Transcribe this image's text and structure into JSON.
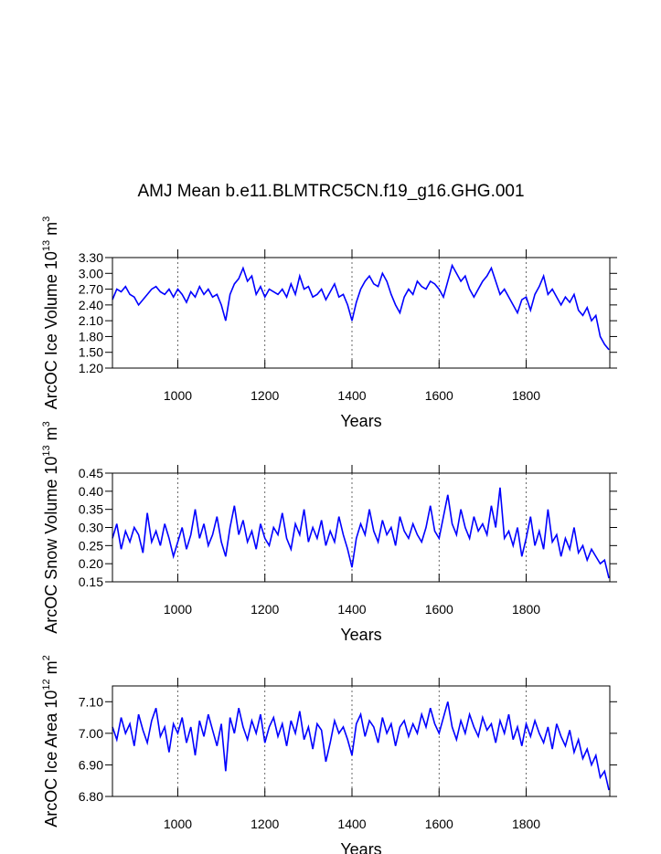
{
  "chart_data": [
    {
      "type": "line",
      "title": "AMJ Mean b.e11.BLMTRC5CN.f19_g16.GHG.001",
      "ylabel": [
        "ArcOC Ice Volume 10",
        "13",
        " m",
        "3"
      ],
      "xlabel": "Years",
      "xlim": [
        850,
        1992
      ],
      "xticks": [
        1000,
        1200,
        1400,
        1600,
        1800
      ],
      "ylim": [
        1.2,
        3.3
      ],
      "yticks": [
        {
          "value": 1.2,
          "label": "1.20"
        },
        {
          "value": 1.5,
          "label": "1.50"
        },
        {
          "value": 1.8,
          "label": "1.80"
        },
        {
          "value": 2.1,
          "label": "2.10"
        },
        {
          "value": 2.4,
          "label": "2.40"
        },
        {
          "value": 2.7,
          "label": "2.70"
        },
        {
          "value": 3.0,
          "label": "3.00"
        },
        {
          "value": 3.3,
          "label": "3.30"
        }
      ],
      "grid": true,
      "x": [
        850,
        860,
        870,
        880,
        890,
        900,
        910,
        920,
        930,
        940,
        950,
        960,
        970,
        980,
        990,
        1000,
        1010,
        1020,
        1030,
        1040,
        1050,
        1060,
        1070,
        1080,
        1090,
        1100,
        1110,
        1120,
        1130,
        1140,
        1150,
        1160,
        1170,
        1180,
        1190,
        1200,
        1210,
        1220,
        1230,
        1240,
        1250,
        1260,
        1270,
        1280,
        1290,
        1300,
        1310,
        1320,
        1330,
        1340,
        1350,
        1360,
        1370,
        1380,
        1390,
        1400,
        1410,
        1420,
        1430,
        1440,
        1450,
        1460,
        1470,
        1480,
        1490,
        1500,
        1510,
        1520,
        1530,
        1540,
        1550,
        1560,
        1570,
        1580,
        1590,
        1600,
        1610,
        1620,
        1630,
        1640,
        1650,
        1660,
        1670,
        1680,
        1690,
        1700,
        1710,
        1720,
        1730,
        1740,
        1750,
        1760,
        1770,
        1780,
        1790,
        1800,
        1810,
        1820,
        1830,
        1840,
        1850,
        1860,
        1870,
        1880,
        1890,
        1900,
        1910,
        1920,
        1930,
        1940,
        1950,
        1960,
        1970,
        1980,
        1990
      ],
      "series": [
        {
          "color": "#0000ff",
          "values": [
            2.5,
            2.7,
            2.65,
            2.75,
            2.6,
            2.55,
            2.4,
            2.5,
            2.6,
            2.7,
            2.75,
            2.65,
            2.6,
            2.7,
            2.55,
            2.7,
            2.6,
            2.45,
            2.65,
            2.55,
            2.75,
            2.6,
            2.7,
            2.55,
            2.6,
            2.4,
            2.1,
            2.6,
            2.8,
            2.9,
            3.1,
            2.85,
            2.95,
            2.6,
            2.75,
            2.55,
            2.7,
            2.65,
            2.6,
            2.7,
            2.55,
            2.8,
            2.6,
            2.95,
            2.7,
            2.75,
            2.55,
            2.6,
            2.7,
            2.5,
            2.65,
            2.8,
            2.55,
            2.6,
            2.4,
            2.1,
            2.45,
            2.7,
            2.85,
            2.95,
            2.8,
            2.75,
            3.0,
            2.85,
            2.6,
            2.4,
            2.25,
            2.55,
            2.7,
            2.6,
            2.85,
            2.75,
            2.7,
            2.85,
            2.8,
            2.7,
            2.55,
            2.85,
            3.15,
            3.0,
            2.85,
            2.95,
            2.7,
            2.55,
            2.7,
            2.85,
            2.95,
            3.1,
            2.85,
            2.6,
            2.7,
            2.55,
            2.4,
            2.25,
            2.5,
            2.55,
            2.3,
            2.6,
            2.75,
            2.95,
            2.6,
            2.7,
            2.55,
            2.4,
            2.55,
            2.45,
            2.6,
            2.3,
            2.2,
            2.35,
            2.1,
            2.2,
            1.8,
            1.65,
            1.55
          ]
        }
      ]
    },
    {
      "type": "line",
      "ylabel": [
        "ArcOC Snow Volume 10",
        "13",
        " m",
        "3"
      ],
      "xlabel": "Years",
      "xlim": [
        850,
        1992
      ],
      "xticks": [
        1000,
        1200,
        1400,
        1600,
        1800
      ],
      "ylim": [
        0.15,
        0.45
      ],
      "yticks": [
        {
          "value": 0.15,
          "label": "0.15"
        },
        {
          "value": 0.2,
          "label": "0.20"
        },
        {
          "value": 0.25,
          "label": "0.25"
        },
        {
          "value": 0.3,
          "label": "0.30"
        },
        {
          "value": 0.35,
          "label": "0.35"
        },
        {
          "value": 0.4,
          "label": "0.40"
        },
        {
          "value": 0.45,
          "label": "0.45"
        }
      ],
      "grid": true,
      "x": [
        850,
        860,
        870,
        880,
        890,
        900,
        910,
        920,
        930,
        940,
        950,
        960,
        970,
        980,
        990,
        1000,
        1010,
        1020,
        1030,
        1040,
        1050,
        1060,
        1070,
        1080,
        1090,
        1100,
        1110,
        1120,
        1130,
        1140,
        1150,
        1160,
        1170,
        1180,
        1190,
        1200,
        1210,
        1220,
        1230,
        1240,
        1250,
        1260,
        1270,
        1280,
        1290,
        1300,
        1310,
        1320,
        1330,
        1340,
        1350,
        1360,
        1370,
        1380,
        1390,
        1400,
        1410,
        1420,
        1430,
        1440,
        1450,
        1460,
        1470,
        1480,
        1490,
        1500,
        1510,
        1520,
        1530,
        1540,
        1550,
        1560,
        1570,
        1580,
        1590,
        1600,
        1610,
        1620,
        1630,
        1640,
        1650,
        1660,
        1670,
        1680,
        1690,
        1700,
        1710,
        1720,
        1730,
        1740,
        1750,
        1760,
        1770,
        1780,
        1790,
        1800,
        1810,
        1820,
        1830,
        1840,
        1850,
        1860,
        1870,
        1880,
        1890,
        1900,
        1910,
        1920,
        1930,
        1940,
        1950,
        1960,
        1970,
        1980,
        1990
      ],
      "series": [
        {
          "color": "#0000ff",
          "values": [
            0.27,
            0.31,
            0.24,
            0.29,
            0.26,
            0.3,
            0.28,
            0.23,
            0.34,
            0.26,
            0.29,
            0.25,
            0.31,
            0.27,
            0.22,
            0.26,
            0.3,
            0.24,
            0.28,
            0.35,
            0.27,
            0.31,
            0.25,
            0.28,
            0.33,
            0.26,
            0.22,
            0.3,
            0.36,
            0.28,
            0.32,
            0.26,
            0.29,
            0.24,
            0.31,
            0.27,
            0.25,
            0.3,
            0.28,
            0.34,
            0.27,
            0.24,
            0.31,
            0.28,
            0.35,
            0.26,
            0.3,
            0.27,
            0.32,
            0.25,
            0.29,
            0.26,
            0.33,
            0.28,
            0.24,
            0.19,
            0.27,
            0.31,
            0.28,
            0.35,
            0.29,
            0.26,
            0.32,
            0.28,
            0.3,
            0.25,
            0.33,
            0.29,
            0.27,
            0.31,
            0.28,
            0.26,
            0.3,
            0.36,
            0.29,
            0.27,
            0.33,
            0.39,
            0.31,
            0.28,
            0.35,
            0.3,
            0.27,
            0.33,
            0.29,
            0.31,
            0.28,
            0.36,
            0.3,
            0.41,
            0.27,
            0.29,
            0.25,
            0.3,
            0.22,
            0.27,
            0.33,
            0.25,
            0.29,
            0.24,
            0.35,
            0.26,
            0.28,
            0.22,
            0.27,
            0.24,
            0.3,
            0.23,
            0.25,
            0.21,
            0.24,
            0.22,
            0.2,
            0.21,
            0.16
          ]
        }
      ]
    },
    {
      "type": "line",
      "ylabel": [
        "ArcOC Ice Area 10",
        "12",
        " m",
        "2"
      ],
      "xlabel": "Years",
      "xlim": [
        850,
        1992
      ],
      "xticks": [
        1000,
        1200,
        1400,
        1600,
        1800
      ],
      "ylim": [
        6.8,
        7.15
      ],
      "yticks": [
        {
          "value": 6.8,
          "label": "6.80"
        },
        {
          "value": 6.9,
          "label": "6.90"
        },
        {
          "value": 7.0,
          "label": "7.00"
        },
        {
          "value": 7.1,
          "label": "7.10"
        }
      ],
      "grid": true,
      "x": [
        850,
        860,
        870,
        880,
        890,
        900,
        910,
        920,
        930,
        940,
        950,
        960,
        970,
        980,
        990,
        1000,
        1010,
        1020,
        1030,
        1040,
        1050,
        1060,
        1070,
        1080,
        1090,
        1100,
        1110,
        1120,
        1130,
        1140,
        1150,
        1160,
        1170,
        1180,
        1190,
        1200,
        1210,
        1220,
        1230,
        1240,
        1250,
        1260,
        1270,
        1280,
        1290,
        1300,
        1310,
        1320,
        1330,
        1340,
        1350,
        1360,
        1370,
        1380,
        1390,
        1400,
        1410,
        1420,
        1430,
        1440,
        1450,
        1460,
        1470,
        1480,
        1490,
        1500,
        1510,
        1520,
        1530,
        1540,
        1550,
        1560,
        1570,
        1580,
        1590,
        1600,
        1610,
        1620,
        1630,
        1640,
        1650,
        1660,
        1670,
        1680,
        1690,
        1700,
        1710,
        1720,
        1730,
        1740,
        1750,
        1760,
        1770,
        1780,
        1790,
        1800,
        1810,
        1820,
        1830,
        1840,
        1850,
        1860,
        1870,
        1880,
        1890,
        1900,
        1910,
        1920,
        1930,
        1940,
        1950,
        1960,
        1970,
        1980,
        1990
      ],
      "series": [
        {
          "color": "#0000ff",
          "values": [
            7.02,
            6.98,
            7.05,
            7.0,
            7.03,
            6.96,
            7.06,
            7.01,
            6.97,
            7.04,
            7.08,
            6.99,
            7.02,
            6.94,
            7.03,
            7.0,
            7.05,
            6.97,
            7.02,
            6.93,
            7.04,
            6.99,
            7.06,
            7.01,
            6.96,
            7.03,
            6.88,
            7.05,
            7.0,
            7.08,
            7.02,
            6.98,
            7.04,
            7.0,
            7.06,
            6.97,
            7.02,
            7.05,
            6.99,
            7.03,
            6.96,
            7.04,
            7.0,
            7.07,
            6.98,
            7.02,
            6.95,
            7.03,
            7.01,
            6.91,
            6.97,
            7.04,
            7.0,
            7.02,
            6.98,
            6.93,
            7.03,
            7.06,
            6.99,
            7.04,
            7.02,
            6.97,
            7.05,
            7.0,
            7.03,
            6.96,
            7.02,
            7.04,
            6.99,
            7.03,
            7.0,
            7.06,
            7.02,
            7.08,
            7.03,
            7.0,
            7.05,
            7.1,
            7.02,
            6.98,
            7.04,
            7.0,
            7.06,
            7.02,
            6.99,
            7.05,
            7.01,
            7.03,
            6.97,
            7.04,
            7.0,
            7.06,
            6.98,
            7.02,
            6.96,
            7.03,
            6.99,
            7.04,
            7.0,
            6.97,
            7.02,
            6.95,
            7.03,
            6.99,
            6.96,
            7.01,
            6.94,
            6.98,
            6.92,
            6.95,
            6.9,
            6.93,
            6.86,
            6.88,
            6.82
          ]
        }
      ]
    }
  ]
}
